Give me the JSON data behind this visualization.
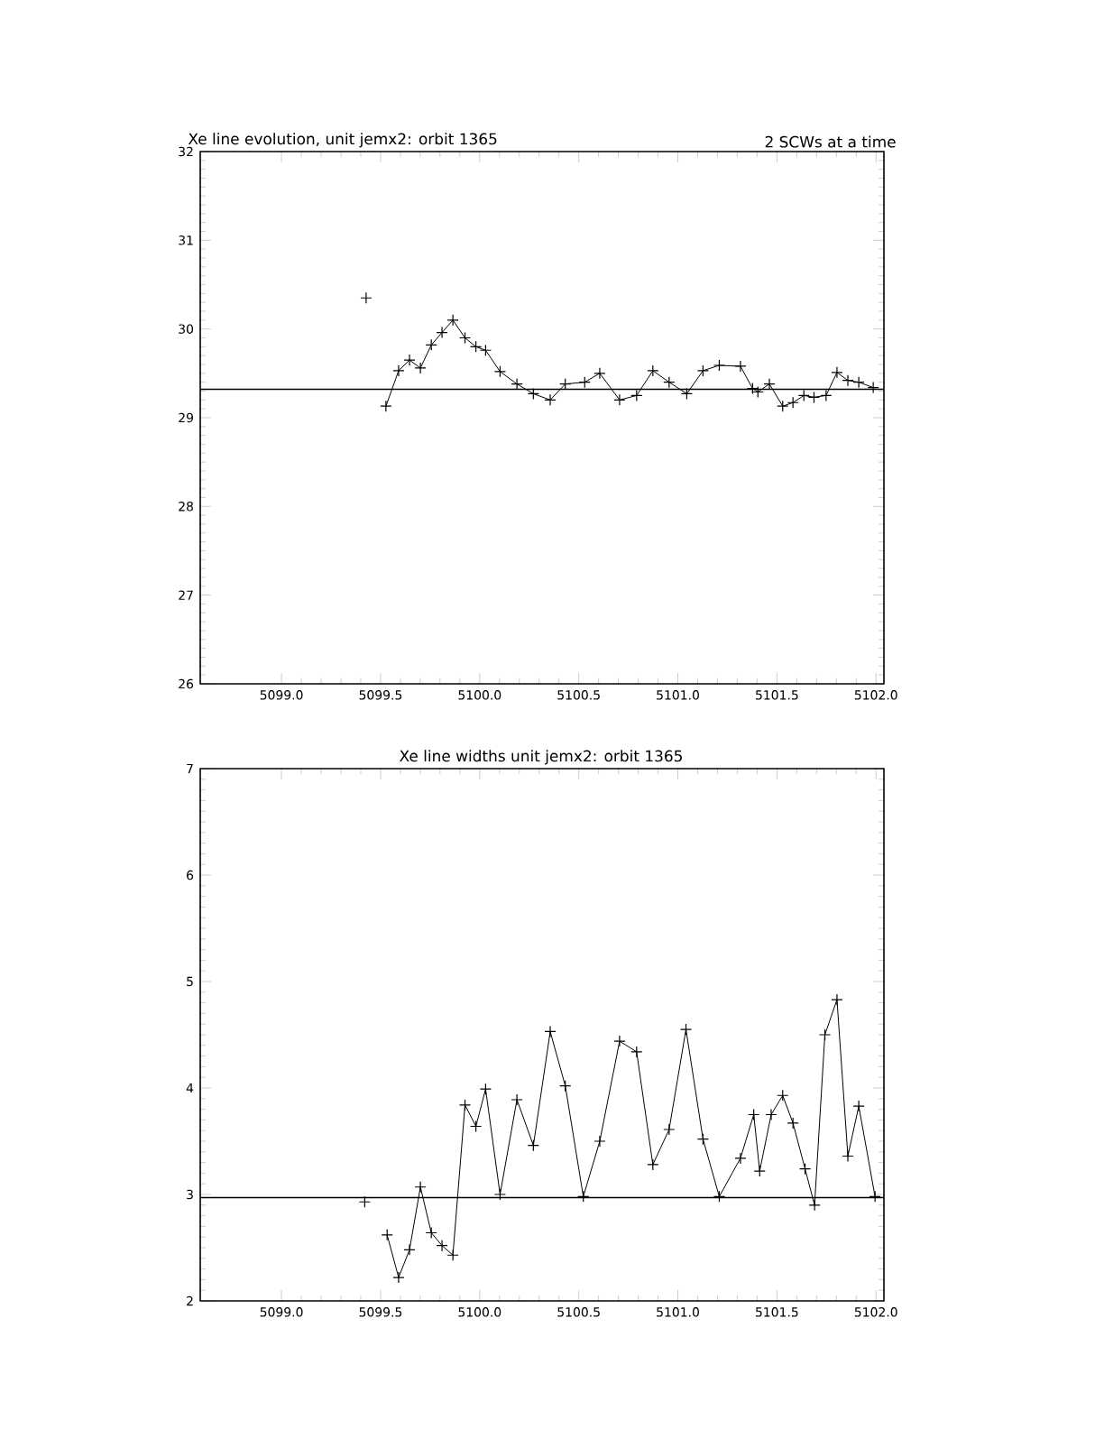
{
  "chart_data": [
    {
      "type": "line",
      "title": "Xe line evolution, unit jemx2: orbit 1365",
      "annotations": [
        "2 SCWs at a time"
      ],
      "x": [
        5099.427,
        5099.48,
        5099.527,
        5099.591,
        5099.646,
        5099.701,
        5099.756,
        5099.81,
        5099.865,
        5099.926,
        5099.981,
        5100.03,
        5100.103,
        5100.188,
        5100.271,
        5100.356,
        5100.432,
        5100.53,
        5100.606,
        5100.706,
        5100.792,
        5100.874,
        5100.956,
        5101.045,
        5101.127,
        5101.209,
        5101.316,
        5101.377,
        5101.404,
        5101.462,
        5101.529,
        5101.581,
        5101.636,
        5101.687,
        5101.748,
        5101.803,
        5101.858,
        5101.913,
        5101.986
      ],
      "values": [
        30.35,
        null,
        29.13,
        29.53,
        29.65,
        29.56,
        29.82,
        29.96,
        30.1,
        29.9,
        29.8,
        29.76,
        29.52,
        29.38,
        29.27,
        29.2,
        29.38,
        29.4,
        29.5,
        29.2,
        29.25,
        29.53,
        29.4,
        29.27,
        29.53,
        29.59,
        29.58,
        29.33,
        29.29,
        29.38,
        29.13,
        29.17,
        29.25,
        29.23,
        29.25,
        29.51,
        29.42,
        29.4,
        29.34
      ],
      "color": "#000000",
      "marker": "cross",
      "line_style": "solid",
      "ref_lines": [
        {
          "axis": "y",
          "value": 29.32,
          "color": "#000000"
        }
      ],
      "xlim": [
        5098.59,
        5102.04
      ],
      "ylim": [
        26,
        32
      ],
      "xticks": [
        {
          "value": 5099,
          "label": "5099.0"
        },
        {
          "value": 5099.5,
          "label": "5099.5"
        },
        {
          "value": 5100,
          "label": "5100.0"
        },
        {
          "value": 5100.5,
          "label": "5100.5"
        },
        {
          "value": 5101,
          "label": "5101.0"
        },
        {
          "value": 5101.5,
          "label": "5101.5"
        },
        {
          "value": 5102,
          "label": "5102.0"
        }
      ],
      "yticks": [
        26,
        27,
        28,
        29,
        30,
        31,
        32
      ]
    },
    {
      "type": "line",
      "title": "Xe line widths unit jemx2: orbit 1365",
      "x": [
        5099.42,
        5099.48,
        5099.533,
        5099.591,
        5099.646,
        5099.701,
        5099.756,
        5099.81,
        5099.865,
        5099.926,
        5099.981,
        5100.03,
        5100.103,
        5100.188,
        5100.271,
        5100.356,
        5100.432,
        5100.523,
        5100.606,
        5100.706,
        5100.792,
        5100.874,
        5100.956,
        5101.041,
        5101.127,
        5101.209,
        5101.316,
        5101.383,
        5101.413,
        5101.471,
        5101.529,
        5101.581,
        5101.642,
        5101.69,
        5101.742,
        5101.803,
        5101.858,
        5101.913,
        5101.995
      ],
      "values": [
        2.93,
        null,
        2.62,
        2.22,
        2.48,
        3.07,
        2.64,
        2.52,
        2.43,
        3.84,
        3.64,
        3.99,
        3.0,
        3.89,
        3.46,
        4.53,
        4.02,
        2.98,
        3.5,
        4.44,
        4.34,
        3.28,
        3.61,
        4.55,
        3.52,
        2.98,
        3.34,
        3.75,
        3.22,
        3.75,
        3.93,
        3.67,
        3.24,
        2.9,
        4.5,
        4.83,
        3.36,
        3.83,
        2.98
      ],
      "color": "#000000",
      "marker": "cross",
      "line_style": "solid",
      "ref_lines": [
        {
          "axis": "y",
          "value": 2.97,
          "color": "#000000"
        }
      ],
      "xlim": [
        5098.59,
        5102.04
      ],
      "ylim": [
        2,
        7
      ],
      "xticks": [
        {
          "value": 5099,
          "label": "5099.0"
        },
        {
          "value": 5099.5,
          "label": "5099.5"
        },
        {
          "value": 5100,
          "label": "5100.0"
        },
        {
          "value": 5100.5,
          "label": "5100.5"
        },
        {
          "value": 5101,
          "label": "5101.0"
        },
        {
          "value": 5101.5,
          "label": "5101.5"
        },
        {
          "value": 5102,
          "label": "5102.0"
        }
      ],
      "yticks": [
        2,
        3,
        4,
        5,
        6,
        7
      ]
    }
  ]
}
